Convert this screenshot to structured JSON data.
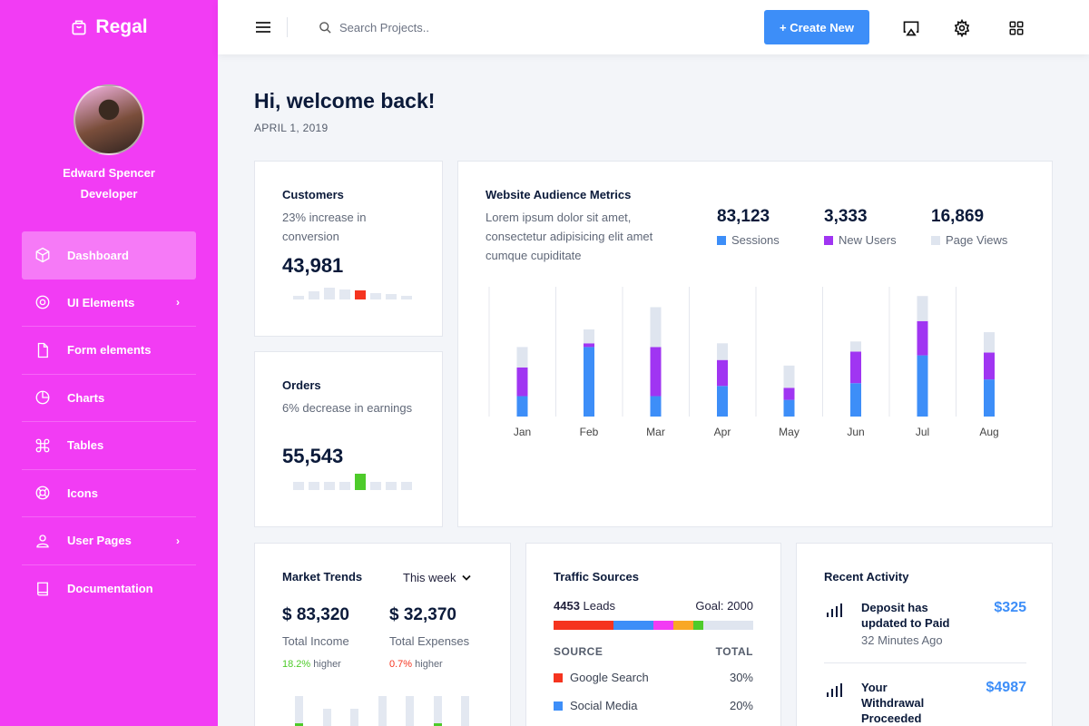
{
  "brand": {
    "name": "Regal",
    "icon": "bag-icon"
  },
  "user": {
    "name": "Edward Spencer",
    "role": "Developer"
  },
  "nav": [
    {
      "label": "Dashboard",
      "icon": "cube-icon",
      "chevron": false,
      "active": true
    },
    {
      "label": "UI Elements",
      "icon": "target-icon",
      "chevron": true,
      "active": false
    },
    {
      "label": "Form elements",
      "icon": "file-icon",
      "chevron": false,
      "active": false
    },
    {
      "label": "Charts",
      "icon": "pie-chart-icon",
      "chevron": false,
      "active": false
    },
    {
      "label": "Tables",
      "icon": "command-icon",
      "chevron": false,
      "active": false
    },
    {
      "label": "Icons",
      "icon": "lifebuoy-icon",
      "chevron": false,
      "active": false
    },
    {
      "label": "User Pages",
      "icon": "user-icon",
      "chevron": true,
      "active": false
    },
    {
      "label": "Documentation",
      "icon": "book-icon",
      "chevron": false,
      "active": false
    }
  ],
  "topbar": {
    "search_placeholder": "Search Projects..",
    "create_label": "+ Create New"
  },
  "header": {
    "greeting": "Hi, welcome back!",
    "date": "APRIL 1, 2019"
  },
  "customers": {
    "title": "Customers",
    "desc": "23% increase in conversion",
    "value": "43,981",
    "bars": [
      4,
      9,
      13,
      11,
      10,
      7,
      6,
      4
    ],
    "highlight_index": 4,
    "highlight_color": "#f5341f"
  },
  "orders": {
    "title": "Orders",
    "desc": "6% decrease in earnings",
    "value": "55,543",
    "bars": [
      9,
      9,
      9,
      9,
      18,
      9,
      9,
      9
    ],
    "highlight_index": 4,
    "highlight_color": "#4ecb2a"
  },
  "audience": {
    "title": "Website Audience Metrics",
    "desc": "Lorem ipsum dolor sit amet, consectetur adipisicing elit amet cumque cupiditate",
    "stats": [
      {
        "value": "83,123",
        "label": "Sessions",
        "color": "#3d8ef8"
      },
      {
        "value": "3,333",
        "label": "New Users",
        "color": "#a035f2"
      },
      {
        "value": "16,869",
        "label": "Page Views",
        "color": "#dfe5ef"
      }
    ]
  },
  "chart_data": {
    "type": "bar",
    "stacked": true,
    "categories": [
      "Jan",
      "Feb",
      "Mar",
      "Apr",
      "May",
      "Jun",
      "Jul",
      "Aug"
    ],
    "series": [
      {
        "name": "Sessions",
        "color": "#3d8ef8",
        "values": [
          22,
          75,
          22,
          33,
          18,
          36,
          66,
          40
        ]
      },
      {
        "name": "New Users",
        "color": "#a035f2",
        "values": [
          31,
          4,
          53,
          28,
          13,
          34,
          37,
          29
        ]
      },
      {
        "name": "Page Views",
        "color": "#dfe5ef",
        "values": [
          22,
          15,
          43,
          18,
          24,
          11,
          27,
          22
        ]
      }
    ],
    "ylim": [
      0,
      140
    ],
    "grid": "vertical"
  },
  "market": {
    "title": "Market Trends",
    "period": "This week",
    "income": {
      "value": "$ 83,320",
      "label": "Total Income",
      "pct": "18.2%",
      "suffix": "higher",
      "color": "#4ecb2a"
    },
    "expenses": {
      "value": "$ 32,370",
      "label": "Total Expenses",
      "pct": "0.7%",
      "suffix": "higher",
      "color": "#f5341f"
    },
    "bars": [
      34,
      20,
      20,
      34,
      34,
      34,
      34
    ],
    "bar_highlight": [
      4,
      0,
      0,
      0,
      0,
      4,
      0
    ]
  },
  "traffic": {
    "title": "Traffic Sources",
    "leads_number": "4453",
    "leads_label": "Leads",
    "goal": "Goal: 2000",
    "segments": [
      {
        "color": "#f5341f",
        "share": 30
      },
      {
        "color": "#3d8ef8",
        "share": 20
      },
      {
        "color": "#f23cf4",
        "share": 10
      },
      {
        "color": "#f9a825",
        "share": 10
      },
      {
        "color": "#4ecb2a",
        "share": 5
      },
      {
        "color": "#dfe5ef",
        "share": 25
      }
    ],
    "col_source": "SOURCE",
    "col_total": "TOTAL",
    "rows": [
      {
        "source": "Google Search",
        "total": "30%",
        "color": "#f5341f"
      },
      {
        "source": "Social Media",
        "total": "20%",
        "color": "#3d8ef8"
      }
    ]
  },
  "activity": {
    "title": "Recent Activity",
    "items": [
      {
        "text": "Deposit has updated to Paid",
        "time": "32 Minutes Ago",
        "amount": "$325"
      },
      {
        "text": "Your Withdrawal Proceeded",
        "time": "",
        "amount": "$4987"
      }
    ]
  }
}
